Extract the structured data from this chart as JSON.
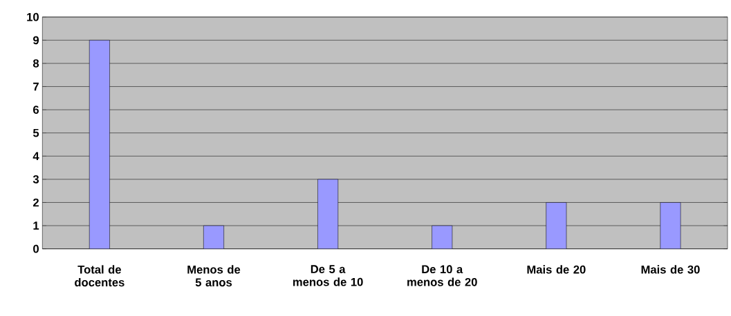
{
  "chart_data": {
    "type": "bar",
    "categories": [
      "Total de docentes",
      "Menos de 5 anos",
      "De 5 a menos de 10",
      "De 10 a menos de 20",
      "Mais de 20",
      "Mais de 30"
    ],
    "values": [
      9,
      1,
      3,
      1,
      2,
      2
    ],
    "color": "#9999ff",
    "ylim": [
      0,
      10
    ],
    "yticks": [
      0,
      1,
      2,
      3,
      4,
      5,
      6,
      7,
      8,
      9,
      10
    ],
    "grid": "y"
  }
}
